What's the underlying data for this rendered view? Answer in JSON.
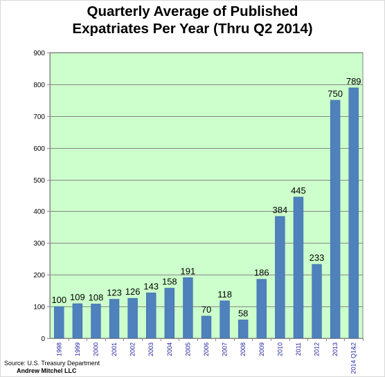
{
  "chart_data": {
    "type": "bar",
    "title_line1": "Quarterly Average of Published",
    "title_line2": "Expatriates Per Year (Thru Q2 2014)",
    "xlabel": "",
    "ylabel": "",
    "ylim": [
      0,
      900
    ],
    "yticks": [
      0,
      100,
      200,
      300,
      400,
      500,
      600,
      700,
      800,
      900
    ],
    "grid": true,
    "legend": "none",
    "categories": [
      "1998",
      "1999",
      "2000",
      "2001",
      "2002",
      "2003",
      "2004",
      "2005",
      "2006",
      "2007",
      "2008",
      "2009",
      "2010",
      "2011",
      "2012",
      "2013",
      "2014 Q1&2"
    ],
    "values": [
      100,
      109,
      108,
      123,
      126,
      143,
      158,
      191,
      70,
      118,
      58,
      186,
      384,
      445,
      233,
      750,
      789
    ],
    "colors": {
      "bar": "#4f81bd",
      "bar_edge": "#3e6da8",
      "plot_background": "#ccffcc",
      "gridline": "#868686",
      "tick_label_x": "#1f1f9f"
    }
  },
  "footer": {
    "source": "Source: U.S. Treasury Department",
    "author": "Andrew Mitchel LLC"
  }
}
